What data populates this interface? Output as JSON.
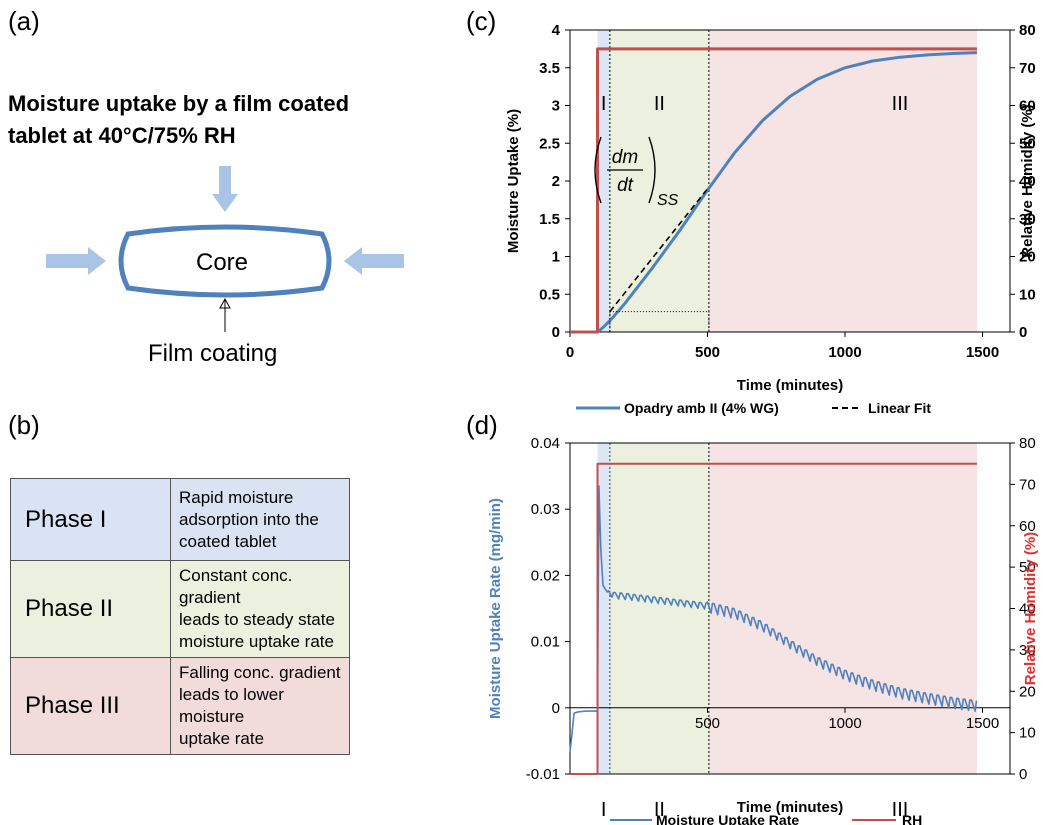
{
  "panel_a": {
    "label": "(a)",
    "title_line1": "Moisture uptake by a film coated",
    "title_line2": "tablet at 40°C/75% RH",
    "core_label": "Core",
    "coating_label": "Film coating"
  },
  "panel_b": {
    "label": "(b)",
    "rows": [
      {
        "phase": "Phase I",
        "desc_lines": [
          "Rapid moisture",
          "adsorption into the",
          "coated tablet"
        ],
        "color": "#dae3f3"
      },
      {
        "phase": "Phase II",
        "desc_lines": [
          "Constant conc. gradient",
          "leads to steady state",
          "moisture uptake rate"
        ],
        "color": "#ebf1de"
      },
      {
        "phase": "Phase III",
        "desc_lines": [
          "Falling conc. gradient",
          "leads to lower moisture",
          "uptake rate"
        ],
        "color": "#f2dcdb"
      }
    ]
  },
  "panel_c": {
    "label": "(c)",
    "phase_labels": [
      "I",
      "II",
      "III"
    ],
    "equation_num": "dm",
    "equation_den": "dt",
    "equation_sub": "SS",
    "legend": [
      "Opadry amb II (4% WG)",
      "Linear Fit"
    ]
  },
  "panel_d": {
    "label": "(d)",
    "phase_labels": [
      "I",
      "II",
      "III"
    ],
    "legend": [
      "Moisture Uptake Rate",
      "RH"
    ]
  },
  "chart_data": [
    {
      "type": "line",
      "xlabel": "Time (minutes)",
      "ylabel": "Moisture Uptake (%)",
      "y2label": "Relative Humidity (%)",
      "xlim": [
        0,
        1600
      ],
      "ylim": [
        0,
        4
      ],
      "y2lim": [
        0,
        80
      ],
      "xticks": [
        0,
        500,
        1000,
        1500
      ],
      "yticks": [
        0,
        0.5,
        1,
        1.5,
        2,
        2.5,
        3,
        3.5,
        4
      ],
      "y2ticks": [
        0,
        10,
        20,
        30,
        40,
        50,
        60,
        70,
        80
      ],
      "phase_boundaries": [
        100,
        145,
        505,
        1480
      ],
      "series": [
        {
          "name": "Opadry amb II (4% WG)",
          "axis": "left",
          "color": "#4f81bd",
          "x": [
            0,
            100,
            120,
            150,
            200,
            300,
            400,
            500,
            600,
            700,
            800,
            900,
            1000,
            1100,
            1200,
            1300,
            1400,
            1480
          ],
          "y": [
            0,
            0,
            0.06,
            0.17,
            0.38,
            0.85,
            1.35,
            1.88,
            2.38,
            2.8,
            3.12,
            3.35,
            3.5,
            3.59,
            3.64,
            3.67,
            3.69,
            3.7
          ]
        },
        {
          "name": "Linear Fit",
          "axis": "left",
          "color": "#000000",
          "dash": true,
          "x": [
            145,
            505
          ],
          "y": [
            0.27,
            1.92
          ]
        },
        {
          "name": "RH",
          "axis": "right",
          "color": "#c0504d",
          "x": [
            0,
            100,
            100,
            1480
          ],
          "y": [
            0,
            0,
            75,
            75
          ]
        }
      ]
    },
    {
      "type": "line",
      "xlabel": "Time (minutes)",
      "ylabel": "Moisture Uptake Rate (mg/min)",
      "y2label": "Relative Humidity (%)",
      "xlim": [
        0,
        1600
      ],
      "ylim": [
        -0.01,
        0.04
      ],
      "y2lim": [
        0,
        80
      ],
      "xticks": [
        500,
        1000,
        1500
      ],
      "yticks": [
        -0.01,
        0,
        0.01,
        0.02,
        0.03,
        0.04
      ],
      "y2ticks": [
        0,
        10,
        20,
        30,
        40,
        50,
        60,
        70,
        80
      ],
      "phase_boundaries": [
        100,
        145,
        505,
        1480
      ],
      "series": [
        {
          "name": "Moisture Uptake Rate",
          "axis": "left",
          "color": "#4f81bd",
          "x": [
            0,
            15,
            30,
            60,
            100,
            105,
            112,
            120,
            135,
            150,
            200,
            300,
            400,
            500,
            600,
            700,
            800,
            900,
            1000,
            1100,
            1200,
            1300,
            1400,
            1480
          ],
          "y": [
            -0.0067,
            -0.0008,
            -0.0006,
            -0.0005,
            -0.0005,
            0.0335,
            0.024,
            0.0185,
            0.0175,
            0.0172,
            0.017,
            0.0165,
            0.016,
            0.0155,
            0.0145,
            0.0125,
            0.0098,
            0.0072,
            0.0052,
            0.0037,
            0.0025,
            0.0017,
            0.001,
            0.0006
          ]
        },
        {
          "name": "RH",
          "axis": "right",
          "color": "#c0504d",
          "x": [
            0,
            100,
            100,
            1480
          ],
          "y": [
            0,
            0,
            75,
            75
          ]
        }
      ]
    }
  ]
}
